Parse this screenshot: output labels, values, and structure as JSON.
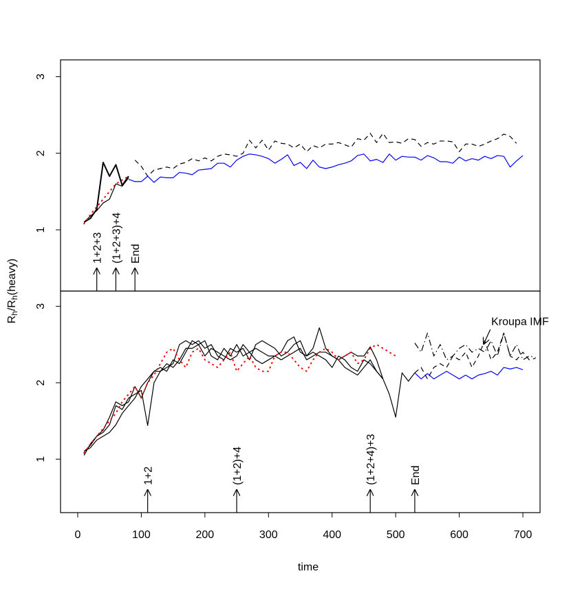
{
  "chart_data": [
    {
      "type": "line",
      "ylabel": [
        "R",
        "h",
        "/R",
        "h",
        "(heavy)"
      ],
      "xlim": [
        -27,
        727
      ],
      "ylim": [
        0.2,
        3.22
      ],
      "yticks": [
        1,
        2,
        3
      ],
      "annotations": [
        {
          "x": 30,
          "label": "1+2+3"
        },
        {
          "x": 60,
          "label": "(1+2+3)+4"
        },
        {
          "x": 90,
          "label": "End"
        }
      ],
      "series": [
        {
          "color": "#000000",
          "style": "solid",
          "width": 2,
          "x": [
            10,
            20,
            30,
            40,
            50,
            60,
            70,
            80
          ],
          "values": [
            1.1,
            1.15,
            1.27,
            1.88,
            1.7,
            1.85,
            1.58,
            1.7
          ]
        },
        {
          "color": "#000000",
          "style": "solid",
          "width": 1.2,
          "x": [
            10,
            20,
            30,
            40,
            50,
            60,
            70,
            80
          ],
          "values": [
            1.1,
            1.18,
            1.25,
            1.35,
            1.4,
            1.6,
            1.57,
            1.68
          ]
        },
        {
          "color": "#ff0000",
          "style": "dotted",
          "width": 2,
          "x": [
            10,
            20,
            30,
            40,
            50,
            60,
            70,
            80
          ],
          "values": [
            1.08,
            1.2,
            1.3,
            1.4,
            1.5,
            1.6,
            1.65,
            1.7
          ]
        },
        {
          "color": "#000000",
          "style": "dashed",
          "width": 1.2,
          "x": [
            90,
            100,
            110,
            120,
            130,
            140,
            150,
            160,
            170,
            180,
            190,
            200,
            210,
            220,
            230,
            240,
            250,
            260,
            270,
            280,
            290,
            300,
            310,
            320,
            330,
            340,
            350,
            360,
            370,
            380,
            390,
            400,
            410,
            420,
            430,
            440,
            450,
            460,
            470,
            480,
            490,
            500,
            510,
            520,
            530,
            540,
            550,
            560,
            570,
            580,
            590,
            600,
            610,
            620,
            630,
            640,
            650,
            660,
            670,
            680,
            690
          ],
          "values": [
            1.91,
            1.83,
            1.7,
            1.78,
            1.8,
            1.82,
            1.8,
            1.86,
            1.88,
            1.93,
            1.9,
            1.94,
            1.9,
            1.96,
            1.99,
            1.98,
            1.96,
            2.0,
            2.17,
            2.07,
            2.17,
            2.04,
            2.16,
            2.13,
            2.12,
            2.07,
            2.12,
            2.02,
            2.1,
            2.07,
            2.12,
            2.12,
            2.14,
            2.11,
            2.08,
            2.19,
            2.17,
            2.26,
            2.14,
            2.26,
            2.14,
            2.15,
            2.13,
            2.19,
            2.18,
            2.09,
            2.14,
            2.12,
            2.16,
            2.16,
            2.15,
            2.02,
            2.12,
            2.12,
            2.09,
            2.12,
            2.16,
            2.19,
            2.25,
            2.22,
            2.13
          ]
        },
        {
          "color": "#0000ff",
          "style": "solid",
          "width": 1.2,
          "x": [
            80,
            90,
            100,
            110,
            120,
            130,
            140,
            150,
            160,
            170,
            180,
            190,
            200,
            210,
            220,
            230,
            240,
            250,
            260,
            270,
            280,
            290,
            300,
            310,
            320,
            330,
            340,
            350,
            360,
            370,
            380,
            390,
            400,
            410,
            420,
            430,
            440,
            450,
            460,
            470,
            480,
            490,
            500,
            510,
            520,
            530,
            540,
            550,
            560,
            570,
            580,
            590,
            600,
            610,
            620,
            630,
            640,
            650,
            660,
            670,
            680,
            690,
            700
          ],
          "values": [
            1.66,
            1.63,
            1.63,
            1.7,
            1.62,
            1.69,
            1.68,
            1.68,
            1.75,
            1.74,
            1.72,
            1.78,
            1.79,
            1.8,
            1.87,
            1.87,
            1.82,
            1.91,
            1.96,
            1.99,
            1.98,
            1.96,
            1.93,
            1.87,
            1.92,
            1.98,
            1.84,
            1.88,
            1.8,
            1.91,
            1.82,
            1.8,
            1.82,
            1.85,
            1.87,
            1.9,
            1.97,
            1.99,
            1.9,
            1.92,
            1.88,
            1.99,
            1.91,
            1.96,
            1.95,
            1.95,
            1.91,
            1.97,
            1.94,
            1.89,
            1.89,
            1.87,
            1.95,
            1.9,
            1.93,
            1.91,
            1.96,
            1.93,
            1.97,
            1.96,
            1.82,
            1.9,
            1.97
          ]
        }
      ]
    },
    {
      "type": "line",
      "xlabel": "time",
      "xlim": [
        -27,
        727
      ],
      "ylim": [
        0.3,
        3.2
      ],
      "yticks": [
        1,
        2,
        3
      ],
      "xticks": [
        0,
        100,
        200,
        300,
        400,
        500,
        600,
        700
      ],
      "annotations": [
        {
          "x": 110,
          "label": "1+2"
        },
        {
          "x": 250,
          "label": "(1+2)+4"
        },
        {
          "x": 460,
          "label": "(1+2+4)+3"
        },
        {
          "x": 530,
          "label": "End"
        }
      ],
      "pointers": [
        {
          "label": "Kroupa IMF",
          "x": 638,
          "y": 2.5
        }
      ],
      "series": [
        {
          "color": "#000000",
          "style": "solid",
          "width": 1.2,
          "x": [
            10,
            20,
            30,
            40,
            50,
            60,
            70,
            80,
            90,
            100,
            110,
            120,
            130,
            140,
            150,
            160,
            170,
            180,
            190,
            200,
            210,
            220,
            230,
            240,
            250,
            260,
            270,
            280,
            290,
            300,
            310,
            320,
            330,
            340,
            350,
            360,
            370,
            380,
            390,
            400,
            410,
            420,
            430,
            440,
            450,
            460,
            470,
            480,
            490,
            500,
            510,
            520,
            530
          ],
          "values": [
            1.05,
            1.2,
            1.3,
            1.35,
            1.45,
            1.7,
            1.65,
            1.8,
            1.85,
            1.9,
            1.44,
            2.0,
            2.15,
            2.2,
            2.25,
            2.5,
            2.55,
            2.5,
            2.55,
            2.45,
            2.5,
            2.35,
            2.3,
            2.45,
            2.4,
            2.45,
            2.3,
            2.5,
            2.55,
            2.5,
            2.45,
            2.35,
            2.4,
            2.5,
            2.55,
            2.35,
            2.45,
            2.72,
            2.45,
            2.35,
            2.3,
            2.35,
            2.4,
            2.35,
            2.35,
            2.47,
            2.3,
            2.05,
            1.85,
            1.55,
            2.13,
            2.02,
            2.13
          ]
        },
        {
          "color": "#000000",
          "style": "solid",
          "width": 1.2,
          "x": [
            10,
            20,
            30,
            40,
            50,
            60,
            70,
            80,
            90,
            100,
            110,
            120,
            130,
            140,
            150,
            160,
            170,
            180,
            190,
            200,
            210,
            220,
            230,
            240,
            250,
            260,
            270,
            280,
            290,
            300,
            310,
            320,
            330,
            340,
            350,
            360,
            370,
            380,
            390,
            400,
            410,
            420,
            430,
            440,
            450,
            460,
            470,
            480
          ],
          "values": [
            1.1,
            1.18,
            1.3,
            1.38,
            1.55,
            1.75,
            1.7,
            1.75,
            1.95,
            1.8,
            2.0,
            2.15,
            2.2,
            2.15,
            2.3,
            2.25,
            2.4,
            2.55,
            2.5,
            2.55,
            2.35,
            2.3,
            2.45,
            2.35,
            2.5,
            2.35,
            2.4,
            2.3,
            2.25,
            2.3,
            2.35,
            2.4,
            2.55,
            2.6,
            2.4,
            2.35,
            2.4,
            2.35,
            2.3,
            2.2,
            2.35,
            2.3,
            2.2,
            2.15,
            2.3,
            2.25,
            2.15,
            2.05
          ]
        },
        {
          "color": "#000000",
          "style": "solid",
          "width": 1.2,
          "x": [
            10,
            20,
            30,
            40,
            50,
            60,
            70,
            80,
            90,
            100,
            110,
            120,
            130,
            140,
            150,
            160,
            170,
            180,
            190,
            200,
            210,
            220,
            230,
            240,
            250,
            260,
            270,
            280,
            290,
            300,
            310,
            320,
            330,
            340,
            350,
            360,
            370,
            380,
            390,
            400,
            410,
            420,
            430,
            440,
            450,
            460,
            470,
            480
          ],
          "values": [
            1.1,
            1.15,
            1.25,
            1.3,
            1.35,
            1.45,
            1.6,
            1.7,
            1.8,
            1.95,
            2.05,
            2.15,
            2.15,
            2.25,
            2.2,
            2.3,
            2.45,
            2.45,
            2.5,
            2.35,
            2.45,
            2.4,
            2.35,
            2.3,
            2.35,
            2.5,
            2.4,
            2.45,
            2.4,
            2.35,
            2.35,
            2.3,
            2.35,
            2.4,
            2.45,
            2.3,
            2.35,
            2.4,
            2.4,
            2.35,
            2.3,
            2.2,
            2.15,
            2.1,
            2.2,
            2.3,
            2.15,
            2.05
          ]
        },
        {
          "color": "#ff0000",
          "style": "dotted",
          "width": 2,
          "x": [
            10,
            20,
            30,
            40,
            50,
            60,
            70,
            80,
            90,
            100,
            110,
            120,
            130,
            140,
            150,
            160,
            170,
            180,
            190,
            200,
            210,
            220,
            230,
            240,
            250,
            260,
            270,
            280,
            290,
            300,
            310,
            320,
            330,
            340,
            350,
            360,
            370,
            380,
            390,
            400,
            410,
            420,
            430,
            440,
            450,
            460,
            470,
            480,
            490,
            500
          ],
          "values": [
            1.08,
            1.2,
            1.3,
            1.4,
            1.5,
            1.6,
            1.75,
            1.85,
            1.95,
            1.8,
            2.0,
            2.1,
            2.25,
            2.4,
            2.45,
            2.3,
            2.2,
            2.4,
            2.45,
            2.3,
            2.25,
            2.2,
            2.3,
            2.4,
            2.15,
            2.25,
            2.35,
            2.2,
            2.15,
            2.15,
            2.35,
            2.4,
            2.4,
            2.3,
            2.2,
            2.15,
            2.3,
            2.4,
            2.45,
            2.4,
            2.3,
            2.35,
            2.4,
            2.25,
            2.3,
            2.45,
            2.5,
            2.45,
            2.4,
            2.35
          ]
        },
        {
          "color": "#0000ff",
          "style": "solid",
          "width": 1.2,
          "x": [
            530,
            540,
            550,
            560,
            570,
            580,
            590,
            600,
            610,
            620,
            630,
            640,
            650,
            660,
            670,
            680,
            690,
            700
          ],
          "values": [
            2.13,
            2.05,
            2.12,
            2.05,
            2.1,
            2.15,
            2.1,
            2.05,
            2.1,
            2.05,
            2.1,
            2.12,
            2.15,
            2.1,
            2.2,
            2.18,
            2.2,
            2.17
          ]
        },
        {
          "color": "#000000",
          "style": "dashed",
          "width": 1.2,
          "x": [
            530,
            540,
            550,
            560,
            570,
            580,
            590,
            600,
            610,
            620,
            630,
            640,
            650,
            660,
            670,
            680,
            690,
            700,
            710,
            720
          ],
          "values": [
            2.13,
            2.2,
            2.05,
            2.2,
            2.25,
            2.2,
            2.35,
            2.3,
            2.4,
            2.2,
            2.35,
            2.55,
            2.3,
            2.4,
            2.65,
            2.35,
            2.3,
            2.4,
            2.3,
            2.32
          ]
        },
        {
          "color": "#000000",
          "style": "dashdot",
          "width": 1.2,
          "x": [
            530,
            540,
            550,
            560,
            570,
            580,
            590,
            600,
            610,
            620,
            630,
            640,
            650,
            660,
            670,
            680,
            690,
            700,
            710,
            720
          ],
          "values": [
            2.52,
            2.4,
            2.65,
            2.35,
            2.5,
            2.3,
            2.35,
            2.45,
            2.5,
            2.4,
            2.45,
            2.4,
            2.55,
            2.35,
            2.65,
            2.35,
            2.5,
            2.3,
            2.35,
            2.33
          ]
        }
      ]
    }
  ]
}
